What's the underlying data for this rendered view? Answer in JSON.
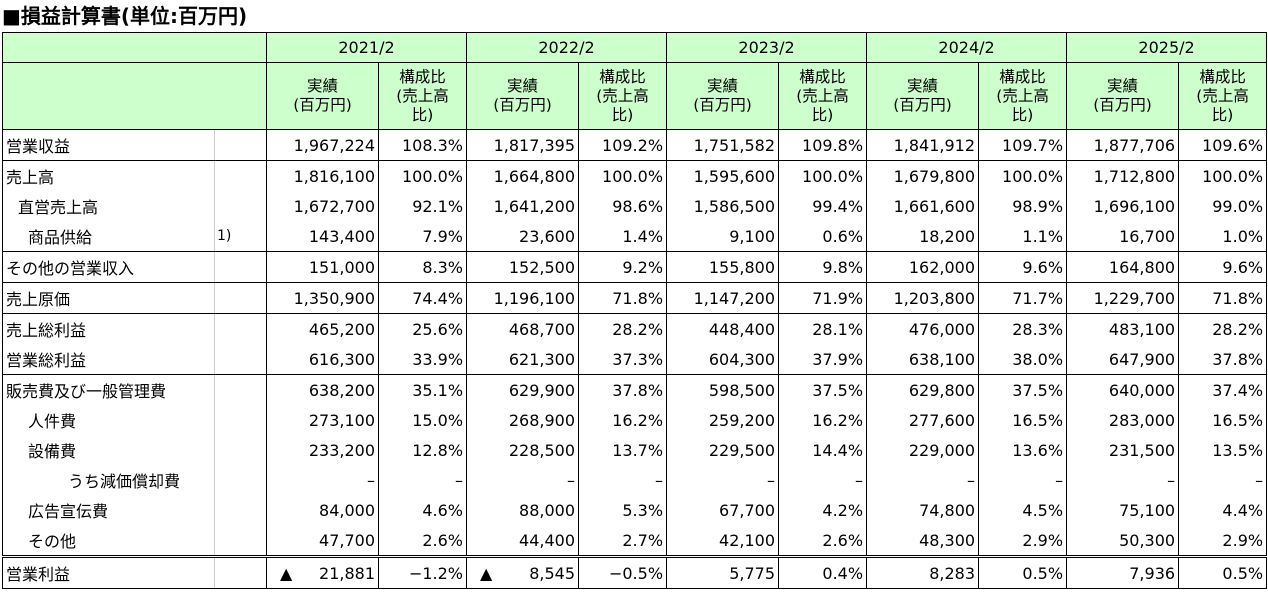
{
  "title": "■損益計算書(単位:百万円)",
  "years": [
    "2021/2",
    "2022/2",
    "2023/2",
    "2024/2",
    "2025/2"
  ],
  "col_actual": "実績\n(百万円)",
  "col_ratio": "構成比\n(売上高\n比)",
  "rows": [
    {
      "label": "営業収益",
      "note": "",
      "indent": 0,
      "v": [
        "1,967,224",
        "108.3%",
        "1,817,395",
        "109.2%",
        "1,751,582",
        "109.8%",
        "1,841,912",
        "109.7%",
        "1,877,706",
        "109.6%"
      ]
    },
    {
      "label": "売上高",
      "note": "",
      "indent": 0,
      "v": [
        "1,816,100",
        "100.0%",
        "1,664,800",
        "100.0%",
        "1,595,600",
        "100.0%",
        "1,679,800",
        "100.0%",
        "1,712,800",
        "100.0%"
      ]
    },
    {
      "label": "直営売上高",
      "note": "",
      "indent": 1,
      "v": [
        "1,672,700",
        "92.1%",
        "1,641,200",
        "98.6%",
        "1,586,500",
        "99.4%",
        "1,661,600",
        "98.9%",
        "1,696,100",
        "99.0%"
      ]
    },
    {
      "label": "商品供給",
      "note": "1)",
      "indent": 2,
      "v": [
        "143,400",
        "7.9%",
        "23,600",
        "1.4%",
        "9,100",
        "0.6%",
        "18,200",
        "1.1%",
        "16,700",
        "1.0%"
      ]
    },
    {
      "label": "その他の営業収入",
      "note": "",
      "indent": 0,
      "v": [
        "151,000",
        "8.3%",
        "152,500",
        "9.2%",
        "155,800",
        "9.8%",
        "162,000",
        "9.6%",
        "164,800",
        "9.6%"
      ]
    },
    {
      "label": "売上原価",
      "note": "",
      "indent": 0,
      "v": [
        "1,350,900",
        "74.4%",
        "1,196,100",
        "71.8%",
        "1,147,200",
        "71.9%",
        "1,203,800",
        "71.7%",
        "1,229,700",
        "71.8%"
      ]
    },
    {
      "label": "売上総利益",
      "note": "",
      "indent": 0,
      "v": [
        "465,200",
        "25.6%",
        "468,700",
        "28.2%",
        "448,400",
        "28.1%",
        "476,000",
        "28.3%",
        "483,100",
        "28.2%"
      ]
    },
    {
      "label": "営業総利益",
      "note": "",
      "indent": 0,
      "v": [
        "616,300",
        "33.9%",
        "621,300",
        "37.3%",
        "604,300",
        "37.9%",
        "638,100",
        "38.0%",
        "647,900",
        "37.8%"
      ]
    },
    {
      "label": "販売費及び一般管理費",
      "note": "",
      "indent": 0,
      "v": [
        "638,200",
        "35.1%",
        "629,900",
        "37.8%",
        "598,500",
        "37.5%",
        "629,800",
        "37.5%",
        "640,000",
        "37.4%"
      ]
    },
    {
      "label": "人件費",
      "note": "",
      "indent": 2,
      "v": [
        "273,100",
        "15.0%",
        "268,900",
        "16.2%",
        "259,200",
        "16.2%",
        "277,600",
        "16.5%",
        "283,000",
        "16.5%"
      ]
    },
    {
      "label": "設備費",
      "note": "",
      "indent": 2,
      "v": [
        "233,200",
        "12.8%",
        "228,500",
        "13.7%",
        "229,500",
        "14.4%",
        "229,000",
        "13.6%",
        "231,500",
        "13.5%"
      ]
    },
    {
      "label": "うち減価償却費",
      "note": "",
      "indent": 3,
      "v": [
        "–",
        "–",
        "–",
        "–",
        "–",
        "–",
        "–",
        "–",
        "–",
        "–"
      ]
    },
    {
      "label": "広告宣伝費",
      "note": "",
      "indent": 2,
      "v": [
        "84,000",
        "4.6%",
        "88,000",
        "5.3%",
        "67,700",
        "4.2%",
        "74,800",
        "4.5%",
        "75,100",
        "4.4%"
      ]
    },
    {
      "label": "その他",
      "note": "",
      "indent": 2,
      "v": [
        "47,700",
        "2.6%",
        "44,400",
        "2.7%",
        "42,100",
        "2.6%",
        "48,300",
        "2.9%",
        "50,300",
        "2.9%"
      ]
    },
    {
      "label": "営業利益",
      "note": "",
      "indent": 0,
      "v": [
        "▲ 21,881",
        "−1.2%",
        "▲ 8,545",
        "−0.5%",
        "5,775",
        "0.4%",
        "8,283",
        "0.5%",
        "7,936",
        "0.5%"
      ]
    }
  ]
}
